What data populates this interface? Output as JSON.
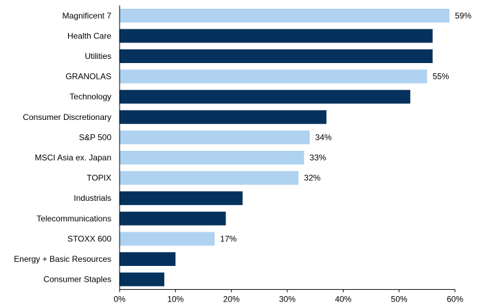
{
  "chart_data": {
    "type": "bar",
    "orientation": "horizontal",
    "categories": [
      "Magnificent 7",
      "Health Care",
      "Utilities",
      "GRANOLAS",
      "Technology",
      "Consumer Discretionary",
      "S&P 500",
      "MSCI Asia ex. Japan",
      "TOPIX",
      "Industrials",
      "Telecommunications",
      "STOXX 600",
      "Energy + Basic Resources",
      "Consumer Staples"
    ],
    "values": [
      59,
      56,
      56,
      55,
      52,
      37,
      34,
      33,
      32,
      22,
      19,
      17,
      10,
      8
    ],
    "data_labels": [
      "59%",
      "",
      "",
      "55%",
      "",
      "",
      "34%",
      "33%",
      "32%",
      "",
      "",
      "17%",
      "",
      ""
    ],
    "highlighted": [
      true,
      false,
      false,
      true,
      false,
      false,
      true,
      true,
      true,
      false,
      false,
      true,
      false,
      false
    ],
    "xlim": [
      0,
      60
    ],
    "x_ticks": [
      "0%",
      "10%",
      "20%",
      "30%",
      "40%",
      "50%",
      "60%"
    ],
    "title": "",
    "xlabel": "",
    "ylabel": "",
    "grid": false,
    "colors": {
      "highlight": "#aed2f0",
      "default": "#04325c"
    }
  }
}
